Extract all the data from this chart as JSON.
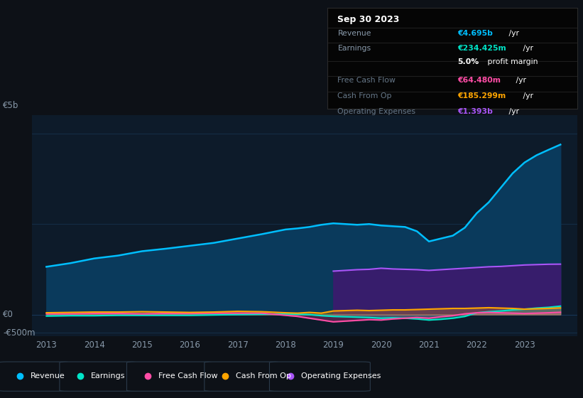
{
  "bg_color": "#0d1117",
  "plot_bg_color": "#0d1b2a",
  "years": [
    2013,
    2013.5,
    2014,
    2014.5,
    2015,
    2015.5,
    2016,
    2016.5,
    2017,
    2017.5,
    2018,
    2018.25,
    2018.5,
    2018.75,
    2019,
    2019.25,
    2019.5,
    2019.75,
    2020,
    2020.25,
    2020.5,
    2020.75,
    2021,
    2021.25,
    2021.5,
    2021.75,
    2022,
    2022.25,
    2022.5,
    2022.75,
    2023,
    2023.25,
    2023.5,
    2023.75
  ],
  "revenue": [
    1.32,
    1.42,
    1.55,
    1.63,
    1.75,
    1.82,
    1.9,
    1.98,
    2.1,
    2.22,
    2.35,
    2.38,
    2.42,
    2.48,
    2.52,
    2.5,
    2.48,
    2.5,
    2.46,
    2.44,
    2.42,
    2.3,
    2.02,
    2.1,
    2.18,
    2.4,
    2.8,
    3.1,
    3.5,
    3.9,
    4.2,
    4.4,
    4.55,
    4.695
  ],
  "earnings": [
    -0.04,
    -0.03,
    -0.03,
    -0.02,
    -0.02,
    -0.02,
    -0.02,
    -0.01,
    0.0,
    0.01,
    0.02,
    0.01,
    0.0,
    -0.03,
    -0.05,
    -0.06,
    -0.07,
    -0.08,
    -0.1,
    -0.09,
    -0.1,
    -0.12,
    -0.15,
    -0.13,
    -0.1,
    -0.05,
    0.05,
    0.08,
    0.1,
    0.13,
    0.15,
    0.18,
    0.2,
    0.234
  ],
  "free_cash_flow": [
    0.02,
    0.02,
    0.03,
    0.03,
    0.02,
    0.03,
    0.03,
    0.04,
    0.04,
    0.04,
    -0.02,
    -0.05,
    -0.1,
    -0.15,
    -0.2,
    -0.18,
    -0.16,
    -0.14,
    -0.15,
    -0.12,
    -0.1,
    -0.08,
    -0.1,
    -0.06,
    -0.03,
    0.02,
    0.05,
    0.06,
    0.05,
    0.04,
    0.03,
    0.04,
    0.05,
    0.064
  ],
  "cash_from_op": [
    0.05,
    0.06,
    0.07,
    0.07,
    0.08,
    0.07,
    0.06,
    0.07,
    0.09,
    0.08,
    0.05,
    0.04,
    0.06,
    0.04,
    0.1,
    0.11,
    0.12,
    0.11,
    0.12,
    0.13,
    0.13,
    0.14,
    0.15,
    0.16,
    0.17,
    0.17,
    0.18,
    0.19,
    0.18,
    0.17,
    0.15,
    0.16,
    0.17,
    0.185
  ],
  "op_expenses_x": [
    2019,
    2019.25,
    2019.5,
    2019.75,
    2020,
    2020.25,
    2020.5,
    2020.75,
    2021,
    2021.25,
    2021.5,
    2021.75,
    2022,
    2022.25,
    2022.5,
    2022.75,
    2023,
    2023.25,
    2023.5,
    2023.75
  ],
  "op_expenses_y": [
    1.2,
    1.22,
    1.24,
    1.25,
    1.28,
    1.26,
    1.25,
    1.24,
    1.22,
    1.24,
    1.26,
    1.28,
    1.3,
    1.32,
    1.33,
    1.35,
    1.37,
    1.38,
    1.39,
    1.393
  ],
  "revenue_color": "#00bfff",
  "earnings_color": "#00e5c8",
  "free_cash_flow_color": "#ff4da6",
  "cash_from_op_color": "#ffa500",
  "op_expenses_color": "#a855f7",
  "revenue_fill_color": "#0a3a5c",
  "op_expenses_fill_color": "#3d1a6e",
  "ylim_min": -0.6,
  "ylim_max": 5.5,
  "ylabel_top": "€5b",
  "ylabel_zero": "€0",
  "ylabel_neg": "-€500m",
  "title_date": "Sep 30 2023",
  "tooltip_revenue_bold": "€4.695b",
  "tooltip_revenue_rest": " /yr",
  "tooltip_earnings_bold": "€234.425m",
  "tooltip_earnings_rest": " /yr",
  "tooltip_margin_bold": "5.0%",
  "tooltip_margin_rest": " profit margin",
  "tooltip_fcf_bold": "€64.480m",
  "tooltip_fcf_rest": " /yr",
  "tooltip_cashop_bold": "€185.299m",
  "tooltip_cashop_rest": " /yr",
  "tooltip_opex_bold": "€1.393b",
  "tooltip_opex_rest": " /yr",
  "revenue_color_tooltip": "#00bfff",
  "earnings_color_tooltip": "#00e5c8",
  "fcf_color_tooltip": "#ff4da6",
  "cashop_color_tooltip": "#ffa500",
  "opex_color_tooltip": "#a855f7",
  "legend_labels": [
    "Revenue",
    "Earnings",
    "Free Cash Flow",
    "Cash From Op",
    "Operating Expenses"
  ],
  "legend_colors": [
    "#00bfff",
    "#00e5c8",
    "#ff4da6",
    "#ffa500",
    "#a855f7"
  ],
  "xtick_labels": [
    "2013",
    "2014",
    "2015",
    "2016",
    "2017",
    "2018",
    "2019",
    "2020",
    "2021",
    "2022",
    "2023"
  ],
  "xtick_values": [
    2013,
    2014,
    2015,
    2016,
    2017,
    2018,
    2019,
    2020,
    2021,
    2022,
    2023
  ],
  "grid_color": "#1a3a5c",
  "text_color_light": "#8899aa",
  "text_color_dim": "#667788",
  "text_color_white": "#ffffff"
}
